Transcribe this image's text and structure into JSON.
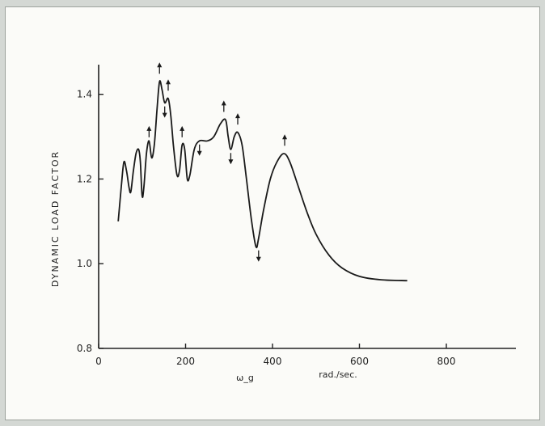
{
  "chart_data": {
    "type": "line",
    "title": "",
    "xlabel": "ω_g",
    "xunit": "rad./sec.",
    "ylabel": "DYNAMIC LOAD FACTOR",
    "xlim": [
      0,
      960
    ],
    "ylim": [
      0.8,
      1.47
    ],
    "x_ticks": [
      "0",
      "200",
      "400",
      "600",
      "800"
    ],
    "y_ticks": [
      "0.8",
      "1.0",
      "1.2",
      "1.4"
    ],
    "grid": false,
    "series": [
      {
        "points": [
          [
            45,
            1.1
          ],
          [
            52,
            1.18
          ],
          [
            58,
            1.24
          ],
          [
            64,
            1.22
          ],
          [
            70,
            1.18
          ],
          [
            74,
            1.17
          ],
          [
            80,
            1.22
          ],
          [
            86,
            1.26
          ],
          [
            92,
            1.27
          ],
          [
            96,
            1.24
          ],
          [
            100,
            1.16
          ],
          [
            104,
            1.18
          ],
          [
            110,
            1.26
          ],
          [
            116,
            1.29
          ],
          [
            122,
            1.25
          ],
          [
            128,
            1.28
          ],
          [
            134,
            1.36
          ],
          [
            140,
            1.43
          ],
          [
            146,
            1.41
          ],
          [
            152,
            1.38
          ],
          [
            160,
            1.39
          ],
          [
            166,
            1.35
          ],
          [
            172,
            1.28
          ],
          [
            180,
            1.21
          ],
          [
            186,
            1.22
          ],
          [
            192,
            1.28
          ],
          [
            198,
            1.27
          ],
          [
            204,
            1.2
          ],
          [
            210,
            1.21
          ],
          [
            220,
            1.27
          ],
          [
            232,
            1.29
          ],
          [
            250,
            1.29
          ],
          [
            265,
            1.3
          ],
          [
            280,
            1.33
          ],
          [
            292,
            1.34
          ],
          [
            298,
            1.3
          ],
          [
            304,
            1.27
          ],
          [
            312,
            1.3
          ],
          [
            320,
            1.31
          ],
          [
            330,
            1.28
          ],
          [
            340,
            1.2
          ],
          [
            352,
            1.1
          ],
          [
            362,
            1.04
          ],
          [
            368,
            1.06
          ],
          [
            380,
            1.13
          ],
          [
            395,
            1.2
          ],
          [
            410,
            1.24
          ],
          [
            426,
            1.26
          ],
          [
            440,
            1.24
          ],
          [
            460,
            1.18
          ],
          [
            480,
            1.12
          ],
          [
            500,
            1.07
          ],
          [
            530,
            1.02
          ],
          [
            560,
            0.99
          ],
          [
            600,
            0.97
          ],
          [
            650,
            0.962
          ],
          [
            710,
            0.96
          ]
        ]
      }
    ],
    "arrows": [
      {
        "x": 116,
        "y": 1.31,
        "dir": "up"
      },
      {
        "x": 140,
        "y": 1.46,
        "dir": "up"
      },
      {
        "x": 160,
        "y": 1.42,
        "dir": "up"
      },
      {
        "x": 152,
        "y": 1.36,
        "dir": "down"
      },
      {
        "x": 192,
        "y": 1.31,
        "dir": "up"
      },
      {
        "x": 232,
        "y": 1.27,
        "dir": "down"
      },
      {
        "x": 288,
        "y": 1.37,
        "dir": "up"
      },
      {
        "x": 304,
        "y": 1.25,
        "dir": "down"
      },
      {
        "x": 320,
        "y": 1.34,
        "dir": "up"
      },
      {
        "x": 368,
        "y": 1.02,
        "dir": "down"
      },
      {
        "x": 428,
        "y": 1.29,
        "dir": "up"
      }
    ]
  }
}
